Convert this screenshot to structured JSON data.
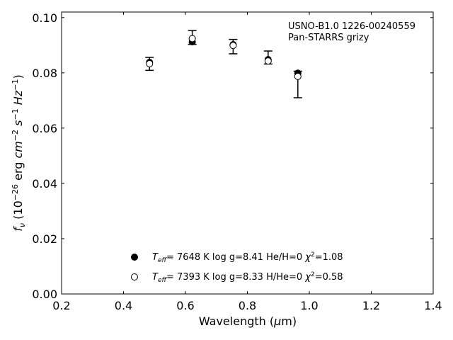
{
  "chart_data": {
    "type": "scatter",
    "annotation": [
      "USNO-B1.0 1226-00240559",
      "Pan-STARRS grizy"
    ],
    "xlabel": "Wavelength (μm)",
    "ylabel": "f_ν (10^−26 erg cm^−2 s^−1 Hz^−1)",
    "xlim": [
      0.2,
      1.4
    ],
    "ylim": [
      0.0,
      0.102
    ],
    "xticks": [
      0.2,
      0.4,
      0.6,
      0.8,
      1.0,
      1.2,
      1.4
    ],
    "xtick_labels": [
      "0.2",
      "0.4",
      "0.6",
      "0.8",
      "1.0",
      "1.2",
      "1.4"
    ],
    "yticks": [
      0.0,
      0.02,
      0.04,
      0.06,
      0.08,
      0.1
    ],
    "ytick_labels": [
      "0.00",
      "0.02",
      "0.04",
      "0.06",
      "0.08",
      "0.10"
    ],
    "grid": false,
    "legend_position": "lower-center",
    "observed": {
      "x": [
        0.484,
        0.622,
        0.754,
        0.867,
        0.963
      ],
      "y": [
        0.0832,
        0.0924,
        0.0898,
        0.0843,
        0.0787
      ],
      "yerr_low": [
        0.0023,
        0.0021,
        0.0029,
        0.0011,
        0.0077
      ],
      "yerr_high": [
        0.0024,
        0.0029,
        0.0023,
        0.0036,
        0.0019
      ]
    },
    "series": [
      {
        "name": "T_eff= 7648 K log g=8.41 He/H=0 χ²=1.08",
        "marker": "filled-circle",
        "x": [
          0.484,
          0.622,
          0.754,
          0.867,
          0.963
        ],
        "y": [
          0.0838,
          0.0912,
          0.0902,
          0.0848,
          0.0799
        ]
      },
      {
        "name": "T_eff= 7393 K log g=8.33 H/He=0 χ²=0.58",
        "marker": "open-circle",
        "x": [
          0.484,
          0.622,
          0.754,
          0.867,
          0.963
        ],
        "y": [
          0.0833,
          0.0924,
          0.0899,
          0.0843,
          0.0787
        ]
      }
    ]
  }
}
